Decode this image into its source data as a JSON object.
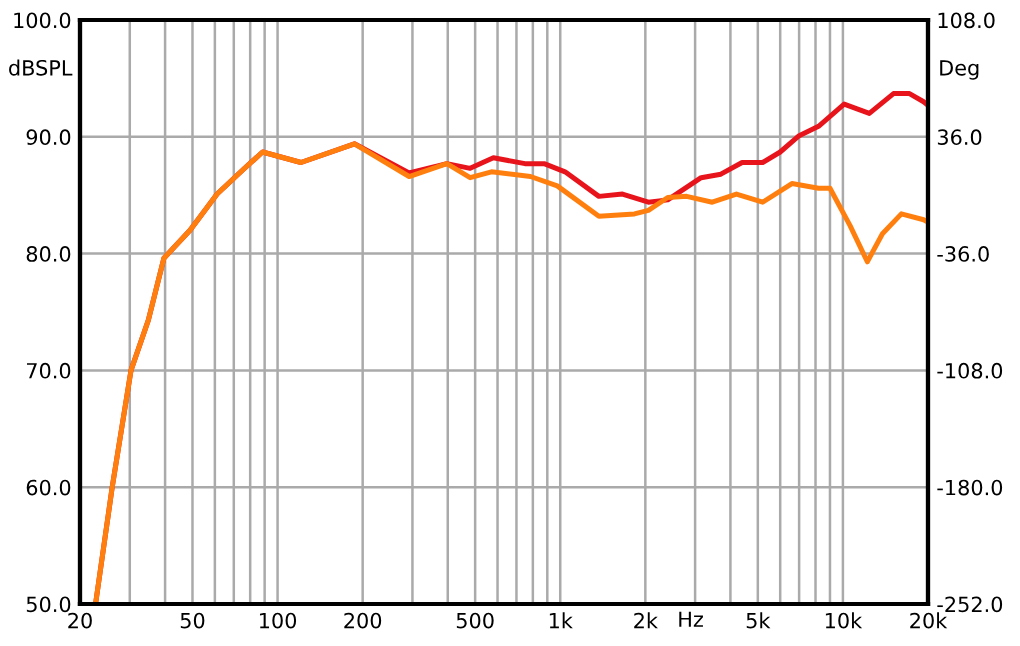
{
  "chart_data": {
    "type": "line",
    "xlabel": "Hz",
    "ylabel": "dBSPL",
    "y2label": "Deg",
    "log": "x",
    "grid": true,
    "legend": false,
    "line_style": "solid",
    "marker": "none",
    "xlim": [
      20,
      20000
    ],
    "ylim": [
      50,
      100
    ],
    "y2lim": [
      -252,
      108
    ],
    "xticks": [
      {
        "value": 20,
        "label": "20"
      },
      {
        "value": 30,
        "label": null
      },
      {
        "value": 40,
        "label": null
      },
      {
        "value": 50,
        "label": "50"
      },
      {
        "value": 60,
        "label": null
      },
      {
        "value": 70,
        "label": null
      },
      {
        "value": 80,
        "label": null
      },
      {
        "value": 90,
        "label": null
      },
      {
        "value": 100,
        "label": "100"
      },
      {
        "value": 200,
        "label": "200"
      },
      {
        "value": 300,
        "label": null
      },
      {
        "value": 400,
        "label": null
      },
      {
        "value": 500,
        "label": "500"
      },
      {
        "value": 600,
        "label": null
      },
      {
        "value": 700,
        "label": null
      },
      {
        "value": 800,
        "label": null
      },
      {
        "value": 900,
        "label": null
      },
      {
        "value": 1000,
        "label": "1k"
      },
      {
        "value": 2000,
        "label": "2k"
      },
      {
        "value": 3000,
        "label": null
      },
      {
        "value": 4000,
        "label": null
      },
      {
        "value": 5000,
        "label": "5k"
      },
      {
        "value": 6000,
        "label": null
      },
      {
        "value": 7000,
        "label": null
      },
      {
        "value": 8000,
        "label": null
      },
      {
        "value": 9000,
        "label": null
      },
      {
        "value": 10000,
        "label": "10k"
      },
      {
        "value": 20000,
        "label": "20k"
      }
    ],
    "yticks": [
      {
        "value": 50,
        "label": "50.0"
      },
      {
        "value": 60,
        "label": "60.0"
      },
      {
        "value": 70,
        "label": "70.0"
      },
      {
        "value": 80,
        "label": "80.0"
      },
      {
        "value": 90,
        "label": "90.0"
      },
      {
        "value": 100,
        "label": "100.0"
      }
    ],
    "y2ticks": [
      {
        "value": -252,
        "label": "-252.0"
      },
      {
        "value": -180,
        "label": "-180.0"
      },
      {
        "value": -108,
        "label": "-108.0"
      },
      {
        "value": -36,
        "label": "-36.0"
      },
      {
        "value": 36,
        "label": "36.0"
      },
      {
        "value": 108,
        "label": "108.0"
      }
    ],
    "series": [
      {
        "color": "#e8141c",
        "x": [
          22.7,
          26,
          30.3,
          34.9,
          39.6,
          49,
          61.1,
          75.6,
          88.5,
          121,
          187,
          292,
          397,
          480,
          580,
          750,
          877,
          1040,
          1370,
          1660,
          2050,
          2400,
          3150,
          3700,
          4400,
          5200,
          6000,
          7000,
          8200,
          10100,
          12400,
          15100,
          17200,
          19300,
          20000
        ],
        "values": [
          50,
          60,
          70,
          74.3,
          79.6,
          82,
          85.1,
          87.2,
          88.7,
          87.8,
          89.4,
          86.9,
          87.7,
          87.3,
          88.2,
          87.7,
          87.7,
          87,
          84.9,
          85.1,
          84.4,
          84.6,
          86.5,
          86.8,
          87.8,
          87.8,
          88.7,
          90.1,
          90.9,
          92.8,
          92,
          93.7,
          93.7,
          93,
          92.7
        ]
      },
      {
        "color": "#ff7f0e",
        "x": [
          22.7,
          26,
          30.3,
          34.9,
          39.6,
          49,
          61.1,
          75.6,
          88.5,
          121,
          187,
          292,
          397,
          480,
          571,
          785,
          976,
          1370,
          1830,
          2050,
          2400,
          2800,
          3450,
          4200,
          5200,
          6600,
          8200,
          9000,
          10600,
          12200,
          13800,
          16100,
          19300,
          20000
        ],
        "values": [
          50,
          60,
          70,
          74.3,
          79.6,
          82,
          85.1,
          87.2,
          88.7,
          87.8,
          89.4,
          86.6,
          87.7,
          86.5,
          87,
          86.6,
          85.8,
          83.2,
          83.4,
          83.7,
          84.8,
          84.9,
          84.4,
          85.1,
          84.4,
          86,
          85.6,
          85.6,
          82.4,
          79.3,
          81.7,
          83.4,
          82.9,
          82.7
        ]
      }
    ]
  }
}
